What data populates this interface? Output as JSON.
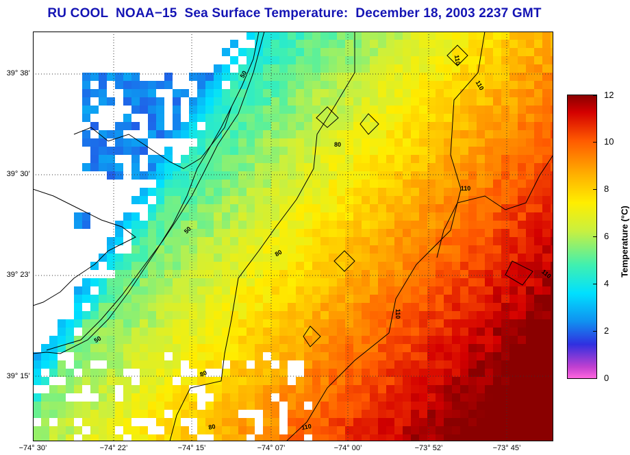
{
  "title": "RU COOL  NOAA−15  Sea Surface Temperature:  December 18, 2003 2237 GMT",
  "map": {
    "y_labels": [
      "39° 38’",
      "39° 30’",
      "39° 23’",
      "39° 15’"
    ],
    "x_labels": [
      "−74° 30’",
      "−74° 22’",
      "−74° 15’",
      "−74° 07’",
      "−74° 00’",
      "−73° 52’",
      "−73° 45’"
    ],
    "contour_labels": [
      "50",
      "50",
      "50",
      "80",
      "80",
      "80",
      "80",
      "110",
      "110",
      "110",
      "110",
      "110",
      "110"
    ]
  },
  "colorbar": {
    "label": "Temperature (°C)",
    "ticks": [
      "0",
      "2",
      "4",
      "6",
      "8",
      "10",
      "12"
    ],
    "min": 0,
    "max": 12
  }
}
